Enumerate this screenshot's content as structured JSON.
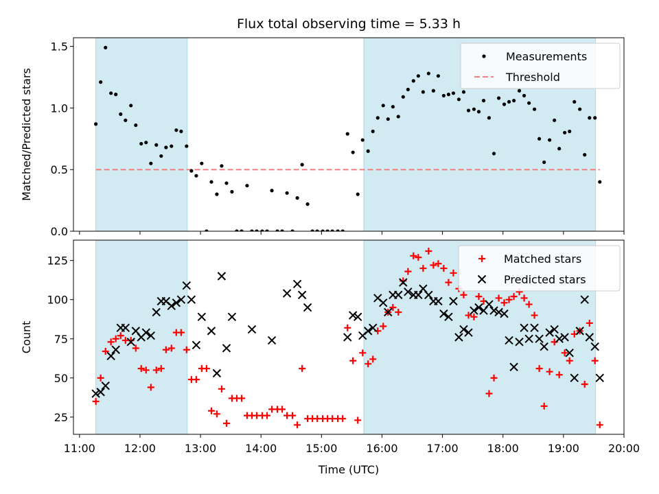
{
  "chart_data": {
    "title": "Flux total observing time = 5.33 h",
    "xlabel": "Time (UTC)",
    "x_unit": "hour_utc",
    "xlim": [
      10.9,
      20.0
    ],
    "xticks": [
      11,
      12,
      13,
      14,
      15,
      16,
      17,
      18,
      19,
      20
    ],
    "xtick_labels": [
      "11:00",
      "12:00",
      "13:00",
      "14:00",
      "15:00",
      "16:00",
      "17:00",
      "18:00",
      "19:00",
      "20:00"
    ],
    "shaded_intervals": [
      [
        11.27,
        12.78
      ],
      [
        15.7,
        19.53
      ]
    ],
    "shade_color": "#add8e6",
    "panels": [
      {
        "type": "scatter",
        "ylabel": "Matched/Predicted stars",
        "ylim": [
          0,
          1.57
        ],
        "yticks": [
          0,
          0.5,
          1.0,
          1.5
        ],
        "ytick_labels": [
          "0.0",
          "0.5",
          "1.0",
          "1.5"
        ],
        "legend_position": "upper right",
        "threshold": {
          "value": 0.5,
          "x_range": [
            11.27,
            19.6
          ],
          "color": "#f08080"
        },
        "series": [
          {
            "name": "Measurements",
            "marker": "dot",
            "color": "#000000",
            "x": [
              11.27,
              11.35,
              11.43,
              11.52,
              11.6,
              11.68,
              11.76,
              11.85,
              11.93,
              12.02,
              12.1,
              12.18,
              12.27,
              12.35,
              12.43,
              12.52,
              12.6,
              12.68,
              12.77,
              12.85,
              12.93,
              13.02,
              13.1,
              13.18,
              13.27,
              13.35,
              13.43,
              13.52,
              13.6,
              13.68,
              13.77,
              13.85,
              13.93,
              14.02,
              14.1,
              14.18,
              14.27,
              14.35,
              14.43,
              14.52,
              14.6,
              14.68,
              14.77,
              14.85,
              14.93,
              15.02,
              15.1,
              15.18,
              15.27,
              15.35,
              15.43,
              15.52,
              15.6,
              15.68,
              15.77,
              15.85,
              15.93,
              16.02,
              16.1,
              16.18,
              16.27,
              16.35,
              16.43,
              16.52,
              16.6,
              16.68,
              16.77,
              16.85,
              16.93,
              17.02,
              17.1,
              17.18,
              17.27,
              17.35,
              17.43,
              17.52,
              17.6,
              17.68,
              17.77,
              17.85,
              17.93,
              18.02,
              18.1,
              18.18,
              18.27,
              18.35,
              18.43,
              18.52,
              18.6,
              18.68,
              18.77,
              18.85,
              18.93,
              19.02,
              19.1,
              19.18,
              19.27,
              19.35,
              19.43,
              19.52,
              19.6
            ],
            "y": [
              0.87,
              1.21,
              1.49,
              1.12,
              1.11,
              0.95,
              0.9,
              1.02,
              0.86,
              0.71,
              0.72,
              0.55,
              0.7,
              0.61,
              0.68,
              0.69,
              0.82,
              0.81,
              0.69,
              0.49,
              0.45,
              0.55,
              0.0,
              0.4,
              0.3,
              0.53,
              0.39,
              0.32,
              0.0,
              0.0,
              0.37,
              0.0,
              0.0,
              0.0,
              0.0,
              0.33,
              0.0,
              0.0,
              0.31,
              0.0,
              0.27,
              0.54,
              0.22,
              0.0,
              0.0,
              0.0,
              0.0,
              0.0,
              0.0,
              0.0,
              0.79,
              0.64,
              0.3,
              0.74,
              0.65,
              0.81,
              0.92,
              1.02,
              0.91,
              1.01,
              0.93,
              1.09,
              1.15,
              1.22,
              1.26,
              1.13,
              1.28,
              1.14,
              1.26,
              1.1,
              1.11,
              1.12,
              1.07,
              1.13,
              0.98,
              0.99,
              0.97,
              1.06,
              0.92,
              0.63,
              1.08,
              1.03,
              1.05,
              1.06,
              1.14,
              1.1,
              1.04,
              0.99,
              0.75,
              0.56,
              0.74,
              0.9,
              0.67,
              0.8,
              0.81,
              1.05,
              0.99,
              0.62,
              0.92,
              0.92,
              0.4
            ]
          },
          {
            "name": "Threshold",
            "marker": "dashed-line",
            "color": "#f08080"
          }
        ]
      },
      {
        "type": "scatter",
        "ylabel": "Count",
        "ylim": [
          14,
          138
        ],
        "yticks": [
          25,
          50,
          75,
          100,
          125
        ],
        "ytick_labels": [
          "25",
          "50",
          "75",
          "100",
          "125"
        ],
        "legend_position": "upper right",
        "series": [
          {
            "name": "Matched stars",
            "marker": "plus",
            "color": "#ff0000",
            "x": [
              11.27,
              11.35,
              11.43,
              11.52,
              11.6,
              11.68,
              11.76,
              11.85,
              11.93,
              12.02,
              12.1,
              12.18,
              12.27,
              12.35,
              12.43,
              12.52,
              12.6,
              12.68,
              12.77,
              12.85,
              12.93,
              13.02,
              13.1,
              13.18,
              13.27,
              13.35,
              13.43,
              13.52,
              13.6,
              13.68,
              13.77,
              13.85,
              13.93,
              14.02,
              14.1,
              14.18,
              14.27,
              14.35,
              14.43,
              14.52,
              14.6,
              14.68,
              14.77,
              14.85,
              14.93,
              15.02,
              15.1,
              15.18,
              15.27,
              15.35,
              15.43,
              15.52,
              15.6,
              15.68,
              15.77,
              15.85,
              15.93,
              16.02,
              16.1,
              16.18,
              16.27,
              16.35,
              16.43,
              16.52,
              16.6,
              16.68,
              16.77,
              16.85,
              16.93,
              17.02,
              17.1,
              17.18,
              17.27,
              17.35,
              17.43,
              17.52,
              17.6,
              17.68,
              17.77,
              17.85,
              17.93,
              18.02,
              18.1,
              18.18,
              18.27,
              18.35,
              18.43,
              18.52,
              18.6,
              18.68,
              18.77,
              18.85,
              18.93,
              19.02,
              19.1,
              19.18,
              19.27,
              19.35,
              19.43,
              19.52,
              19.6
            ],
            "y": [
              35,
              50,
              67,
              73,
              75,
              77,
              74,
              74,
              69,
              56,
              55,
              44,
              55,
              56,
              68,
              69,
              79,
              79,
              68,
              49,
              49,
              56,
              56,
              29,
              27,
              43,
              21,
              37,
              37,
              37,
              26,
              26,
              26,
              26,
              26,
              30,
              30,
              30,
              26,
              26,
              20,
              56,
              24,
              24,
              24,
              24,
              24,
              24,
              24,
              24,
              82,
              61,
              23,
              66,
              59,
              62,
              80,
              83,
              92,
              95,
              92,
              112,
              118,
              128,
              127,
              120,
              131,
              122,
              123,
              120,
              111,
              117,
              107,
              103,
              90,
              89,
              102,
              99,
              40,
              50,
              101,
              98,
              100,
              102,
              105,
              101,
              97,
              90,
              56,
              32,
              54,
              73,
              52,
              66,
              61,
              78,
              80,
              46,
              85,
              61,
              20
            ]
          },
          {
            "name": "Predicted stars",
            "marker": "x",
            "color": "#000000",
            "x": [
              11.27,
              11.35,
              11.43,
              11.52,
              11.6,
              11.68,
              11.76,
              11.85,
              11.93,
              12.02,
              12.1,
              12.18,
              12.27,
              12.35,
              12.43,
              12.52,
              12.6,
              12.68,
              12.77,
              12.85,
              12.93,
              13.02,
              13.18,
              13.27,
              13.35,
              13.43,
              13.52,
              13.85,
              14.18,
              14.43,
              14.6,
              14.68,
              14.77,
              15.43,
              15.52,
              15.6,
              15.68,
              15.77,
              15.85,
              15.93,
              16.02,
              16.1,
              16.18,
              16.27,
              16.35,
              16.43,
              16.52,
              16.6,
              16.68,
              16.77,
              16.85,
              16.93,
              17.02,
              17.1,
              17.18,
              17.27,
              17.35,
              17.43,
              17.52,
              17.6,
              17.68,
              17.77,
              17.85,
              17.93,
              18.02,
              18.1,
              18.18,
              18.27,
              18.35,
              18.43,
              18.52,
              18.6,
              18.68,
              18.77,
              18.85,
              18.93,
              19.02,
              19.1,
              19.18,
              19.27,
              19.35,
              19.43,
              19.52,
              19.6
            ],
            "y": [
              40,
              41,
              45,
              64,
              68,
              82,
              82,
              73,
              80,
              76,
              79,
              77,
              92,
              99,
              99,
              96,
              98,
              100,
              109,
              100,
              71,
              89,
              80,
              53,
              115,
              69,
              89,
              81,
              74,
              104,
              110,
              103,
              95,
              76,
              90,
              89,
              77,
              80,
              82,
              101,
              98,
              92,
              103,
              103,
              111,
              105,
              103,
              103,
              107,
              103,
              99,
              99,
              91,
              89,
              99,
              76,
              81,
              79,
              93,
              95,
              93,
              97,
              93,
              92,
              91,
              74,
              57,
              73,
              82,
              75,
              82,
              75,
              70,
              79,
              81,
              75,
              76,
              66,
              50,
              80,
              100,
              76,
              70,
              50
            ]
          }
        ]
      }
    ]
  }
}
